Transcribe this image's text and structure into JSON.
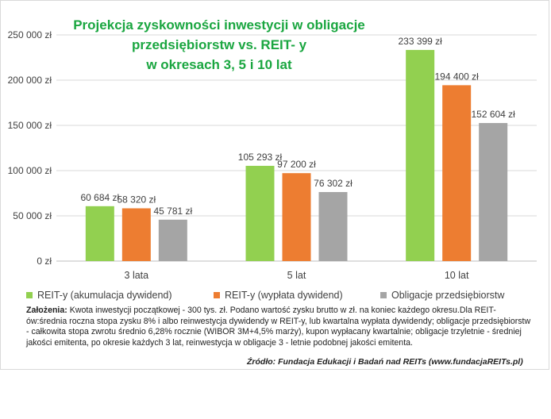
{
  "chart_data": {
    "type": "bar",
    "title_lines": [
      "Projekcja zyskowności inwestycji w obligacje",
      "przedsiębiorstw vs. REIT- y",
      "w okresach 3, 5 i 10 lat"
    ],
    "categories": [
      "3 lata",
      "5 lat",
      "10 lat"
    ],
    "series": [
      {
        "name": "REIT-y (akumulacja dywidend)",
        "color": "#92d050",
        "values": [
          60684,
          105293,
          233399
        ],
        "labels": [
          "60 684 zł",
          "105 293 zł",
          "233 399 zł"
        ]
      },
      {
        "name": "REIT-y (wypłata dywidend)",
        "color": "#ed7d31",
        "values": [
          58320,
          97200,
          194400
        ],
        "labels": [
          "58 320 zł",
          "97 200 zł",
          "194 400 zł"
        ]
      },
      {
        "name": "Obligacje przedsiębiorstw",
        "color": "#a5a5a5",
        "values": [
          45781,
          76302,
          152604
        ],
        "labels": [
          "45 781 zł",
          "76 302 zł",
          "152 604 zł"
        ]
      }
    ],
    "ylim": [
      0,
      250000
    ],
    "yticks": [
      0,
      50000,
      100000,
      150000,
      200000,
      250000
    ],
    "ytick_labels": [
      "0 zł",
      "50 000 zł",
      "100 000 zł",
      "150 000 zł",
      "200 000 zł",
      "250 000 zł"
    ],
    "grid": true,
    "legend_position": "bottom"
  },
  "notes": {
    "label": "Założenia:",
    "text": " Kwota inwestycji początkowej - 300 tys. zł. Podano wartość zysku brutto w zł. na koniec każdego okresu.Dla REIT-ów:średnia roczna stopa zysku 8% i albo reinwestycja dywidendy w REIT-y, lub kwartalna wypłata dywidendy; obligacje przedsiębiorstw - całkowita stopa zwrotu średnio 6,28% rocznie (WIBOR 3M+4,5% marży), kupon wypłacany kwartalnie; obligacje trzyletnie - średniej jakości emitenta, po okresie każdych 3 lat, reinwestycja w obligacje 3 - letnie podobnej jakości emitenta."
  },
  "source": "Źródło: Fundacja Edukacji i Badań nad REITs (www.fundacjaREITs.pl)"
}
